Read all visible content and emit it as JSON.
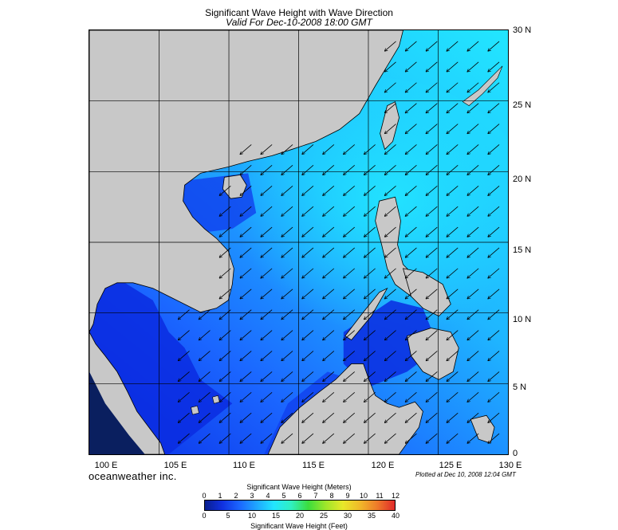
{
  "title": "Significant Wave Height with Wave Direction",
  "subtitle": "Valid For Dec-10-2008 18:00 GMT",
  "brand": "oceanweather inc.",
  "plotted": "Plotted at Dec 10, 2008 12:04 GMT",
  "longitudes": [
    "100 E",
    "105 E",
    "110 E",
    "115 E",
    "120 E",
    "125 E",
    "130 E"
  ],
  "latitudes": [
    "30 N",
    "25 N",
    "20 N",
    "15 N",
    "10 N",
    "5 N",
    "0"
  ],
  "colorbar": {
    "title": "Significant Wave Height (Meters)",
    "units_label": "Significant Wave Height (Feet)",
    "meters_ticks": [
      "0",
      "1",
      "2",
      "3",
      "4",
      "5",
      "6",
      "7",
      "8",
      "9",
      "10",
      "11",
      "12"
    ],
    "feet_ticks": [
      "0",
      "5",
      "10",
      "15",
      "20",
      "25",
      "30",
      "35",
      "40"
    ],
    "colors": [
      "#0a1f8f",
      "#1030e0",
      "#1b66ff",
      "#1fa6ff",
      "#22e6ff",
      "#30f0c0",
      "#3cdd3c",
      "#9ee62a",
      "#e8e82a",
      "#f0b82a",
      "#ee7a2a",
      "#e02a2a"
    ]
  },
  "colors": {
    "land": "#c8c8c8",
    "coast": "#000000",
    "sea_deep": "#0a2be0",
    "sea_mid": "#1b66ff",
    "sea_high": "#1fb6ff",
    "sea_peak": "#22e6ff"
  }
}
